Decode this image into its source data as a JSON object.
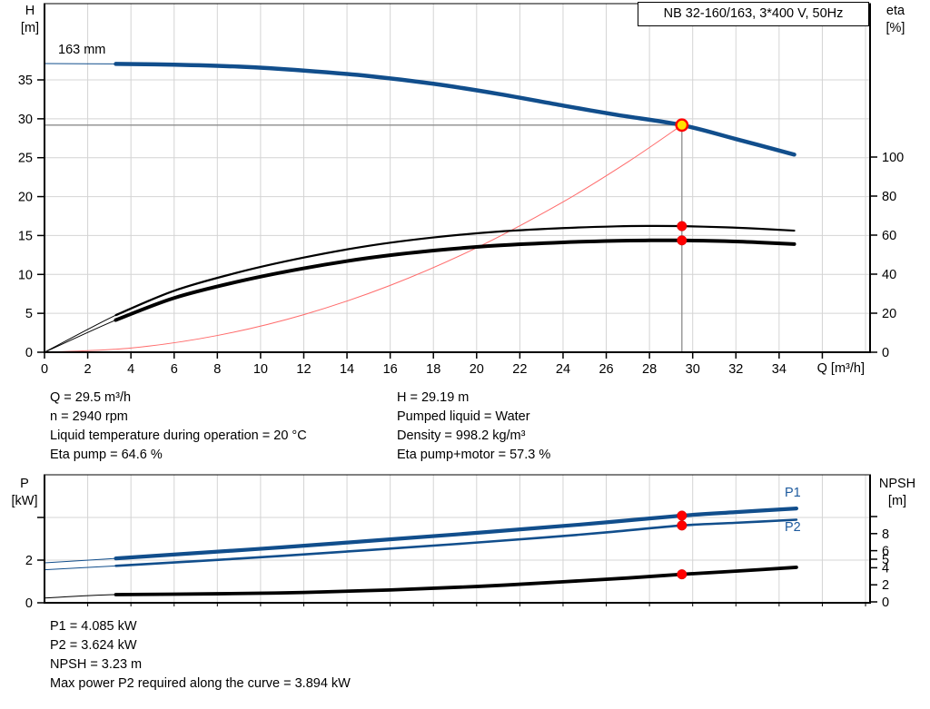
{
  "title_box": "NB 32-160/163, 3*400 V, 50Hz",
  "impeller_label": "163 mm",
  "axis_labels": {
    "top_left_1": "H",
    "top_left_2": "[m]",
    "top_right_1": "eta",
    "top_right_2": "[%]",
    "bottom_left_1": "P",
    "bottom_left_2": "[kW]",
    "bottom_right_1": "NPSH",
    "bottom_right_2": "[m]",
    "x": "Q [m³/h]"
  },
  "curve_labels": {
    "p1": "P1",
    "p2": "P2"
  },
  "info_left": [
    "Q = 29.5 m³/h",
    "n = 2940 rpm",
    "Liquid temperature during operation = 20 °C",
    "Eta pump = 64.6 %"
  ],
  "info_right": [
    "H = 29.19 m",
    "Pumped liquid = Water",
    "Density = 998.2 kg/m³",
    "Eta pump+motor = 57.3 %"
  ],
  "info_bottom": [
    "P1 = 4.085 kW",
    "P2 = 3.624 kW",
    "NPSH = 3.23 m",
    "Max power P2 required along the curve = 3.894 kW"
  ],
  "colors": {
    "curve_blue": "#114e8c",
    "label_blue": "#1d5a9e",
    "curve_black": "#000000",
    "system_red": "#ff6b6b",
    "dot_red": "#ff0000",
    "dot_yellow": "#ffe100",
    "grid": "#d4d4d4",
    "duty_line": "#8c8c8c",
    "axis": "#000000"
  },
  "chart_data": [
    {
      "type": "line",
      "title": "NB 32-160/163, 3*400 V, 50Hz",
      "xlabel": "Q [m³/h]",
      "ylabel_left": "H [m]",
      "ylabel_right": "eta [%]",
      "xlim": [
        0,
        38.2
      ],
      "ylim_left": [
        0,
        44.8
      ],
      "ylim_right_scale_note": "eta 0-100, 0 aligned with H=0",
      "x_ticks": [
        0,
        2,
        4,
        6,
        8,
        10,
        12,
        14,
        16,
        18,
        20,
        22,
        24,
        26,
        28,
        30,
        32,
        34
      ],
      "x_extra_ticks": [
        36
      ],
      "y_left_ticks": [
        0,
        5,
        10,
        15,
        20,
        25,
        30,
        35
      ],
      "y_right_ticks": [
        0,
        20,
        40,
        60,
        80,
        100
      ],
      "grid": true,
      "series": [
        {
          "name": "head",
          "axis": "left",
          "color": "curve_blue",
          "width": 4.5,
          "thin_until": 3.3,
          "points": [
            [
              0,
              37.1
            ],
            [
              3.3,
              37.05
            ],
            [
              6,
              36.95
            ],
            [
              9,
              36.7
            ],
            [
              12,
              36.2
            ],
            [
              15,
              35.5
            ],
            [
              18,
              34.5
            ],
            [
              21,
              33.2
            ],
            [
              24,
              31.7
            ],
            [
              26.5,
              30.5
            ],
            [
              29.5,
              29.19
            ],
            [
              32,
              27.4
            ],
            [
              34.7,
              25.4
            ]
          ]
        },
        {
          "name": "system-curve",
          "axis": "left",
          "color": "system_red",
          "width": 1.2,
          "thin_until": 0,
          "points": [
            [
              0,
              0
            ],
            [
              4,
              0.54
            ],
            [
              8,
              2.15
            ],
            [
              12,
              4.83
            ],
            [
              16,
              8.59
            ],
            [
              20,
              13.42
            ],
            [
              24,
              19.32
            ],
            [
              27,
              24.45
            ],
            [
              29.5,
              29.19
            ]
          ]
        },
        {
          "name": "eta-pump",
          "axis": "right",
          "color": "curve_black",
          "width": 2.2,
          "thin_until": 3.3,
          "points": [
            [
              0,
              0
            ],
            [
              3.3,
              19
            ],
            [
              6,
              31.5
            ],
            [
              9,
              41
            ],
            [
              12,
              48.5
            ],
            [
              15,
              54.5
            ],
            [
              18,
              58.8
            ],
            [
              21,
              61.8
            ],
            [
              24,
              63.6
            ],
            [
              26.5,
              64.5
            ],
            [
              28,
              64.7
            ],
            [
              29.5,
              64.6
            ],
            [
              31.5,
              64
            ],
            [
              33,
              63.3
            ],
            [
              34.7,
              62.3
            ]
          ]
        },
        {
          "name": "eta-pump-motor",
          "axis": "right",
          "color": "curve_black",
          "width": 4,
          "thin_until": 3.3,
          "points": [
            [
              0,
              0
            ],
            [
              3.3,
              16.5
            ],
            [
              6,
              27.8
            ],
            [
              9,
              36.3
            ],
            [
              12,
              43
            ],
            [
              15,
              48.3
            ],
            [
              18,
              52.1
            ],
            [
              21,
              54.7
            ],
            [
              24,
              56.3
            ],
            [
              26.5,
              57.1
            ],
            [
              28,
              57.3
            ],
            [
              29.5,
              57.3
            ],
            [
              31.5,
              56.9
            ],
            [
              33,
              56.3
            ],
            [
              34.7,
              55.4
            ]
          ]
        }
      ],
      "duty_point": {
        "Q": 29.5,
        "H": 29.19,
        "eta_pump": 64.6,
        "eta_pump_motor": 57.3
      }
    },
    {
      "type": "line",
      "xlabel": "Q [m³/h]",
      "ylabel_left": "P [kW]",
      "ylabel_right": "NPSH [m]",
      "xlim": [
        0,
        38.2
      ],
      "ylim_left": [
        0,
        6
      ],
      "ylim_right": [
        0,
        15
      ],
      "y_left_ticks": [
        {
          "v": 0,
          "t": "0"
        },
        {
          "v": 2,
          "t": "2"
        },
        {
          "v": 4,
          "t": ""
        }
      ],
      "y_right_ticks": [
        {
          "v": 0,
          "t": "0"
        },
        {
          "v": 2,
          "t": "2"
        },
        {
          "v": 4,
          "t": "4"
        },
        {
          "v": 5,
          "t": "5"
        },
        {
          "v": 6,
          "t": "6"
        },
        {
          "v": 8,
          "t": "8"
        },
        {
          "v": 10,
          "t": ""
        }
      ],
      "grid": true,
      "series": [
        {
          "name": "P1",
          "axis": "left",
          "color": "curve_blue",
          "width": 4.2,
          "thin_until": 3.3,
          "points": [
            [
              0,
              1.87
            ],
            [
              3.3,
              2.08
            ],
            [
              7,
              2.33
            ],
            [
              11,
              2.6
            ],
            [
              15,
              2.9
            ],
            [
              19,
              3.2
            ],
            [
              23,
              3.52
            ],
            [
              26,
              3.77
            ],
            [
              29.5,
              4.085
            ],
            [
              32,
              4.25
            ],
            [
              34.8,
              4.42
            ]
          ]
        },
        {
          "name": "P2",
          "axis": "left",
          "color": "curve_blue",
          "width": 2.6,
          "thin_until": 3.3,
          "points": [
            [
              0,
              1.55
            ],
            [
              3.3,
              1.73
            ],
            [
              7,
              1.95
            ],
            [
              11,
              2.2
            ],
            [
              15,
              2.47
            ],
            [
              19,
              2.75
            ],
            [
              23,
              3.05
            ],
            [
              26,
              3.3
            ],
            [
              29.5,
              3.624
            ],
            [
              32,
              3.75
            ],
            [
              34.8,
              3.894
            ]
          ]
        },
        {
          "name": "NPSH",
          "axis": "right",
          "color": "curve_black",
          "width": 3.8,
          "thin_until": 3.3,
          "points": [
            [
              0,
              0.45
            ],
            [
              3.3,
              0.85
            ],
            [
              8,
              0.95
            ],
            [
              12,
              1.1
            ],
            [
              16,
              1.4
            ],
            [
              20,
              1.8
            ],
            [
              24,
              2.35
            ],
            [
              27,
              2.8
            ],
            [
              29.5,
              3.23
            ],
            [
              32,
              3.6
            ],
            [
              34.8,
              4.05
            ]
          ]
        }
      ],
      "duty_point": {
        "Q": 29.5,
        "P1": 4.085,
        "P2": 3.624,
        "NPSH": 3.23
      }
    }
  ]
}
